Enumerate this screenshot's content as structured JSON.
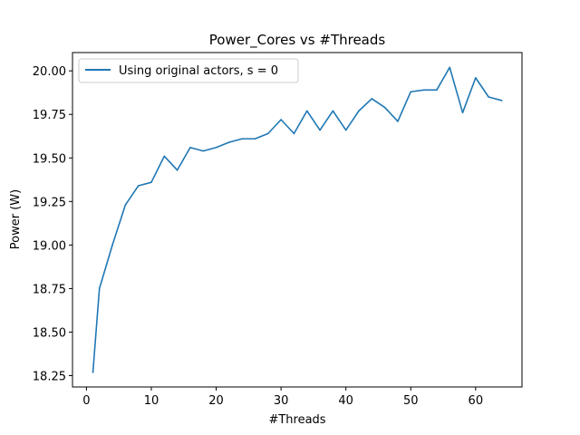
{
  "chart_data": {
    "type": "line",
    "title": "Power_Cores vs #Threads",
    "xlabel": "#Threads",
    "ylabel": "Power (W)",
    "xlim": [
      -2.15,
      67.15
    ],
    "ylim": [
      18.185,
      20.105
    ],
    "xticks": [
      0,
      10,
      20,
      30,
      40,
      50,
      60
    ],
    "xtick_labels": [
      "0",
      "10",
      "20",
      "30",
      "40",
      "50",
      "60"
    ],
    "yticks": [
      18.25,
      18.5,
      18.75,
      19.0,
      19.25,
      19.5,
      19.75,
      20.0
    ],
    "ytick_labels": [
      "18.25",
      "18.50",
      "18.75",
      "19.00",
      "19.25",
      "19.50",
      "19.75",
      "20.00"
    ],
    "grid": false,
    "legend_position": "upper-left",
    "series": [
      {
        "name": "Using original actors, s = 0",
        "color": "#1f77b4",
        "x": [
          1,
          2,
          4,
          6,
          8,
          10,
          12,
          14,
          16,
          18,
          20,
          22,
          24,
          26,
          28,
          30,
          32,
          34,
          36,
          38,
          40,
          42,
          44,
          46,
          48,
          50,
          52,
          54,
          56,
          58,
          60,
          62,
          64
        ],
        "y": [
          18.27,
          18.75,
          19.0,
          19.23,
          19.34,
          19.36,
          19.51,
          19.43,
          19.56,
          19.54,
          19.56,
          19.59,
          19.61,
          19.61,
          19.64,
          19.72,
          19.64,
          19.77,
          19.66,
          19.77,
          19.66,
          19.77,
          19.84,
          19.79,
          19.71,
          19.88,
          19.89,
          19.89,
          20.02,
          19.76,
          19.96,
          19.85,
          19.83
        ]
      }
    ]
  }
}
